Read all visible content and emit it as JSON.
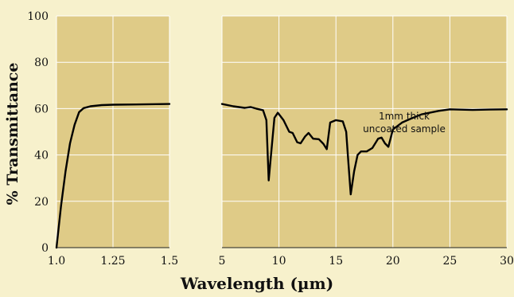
{
  "chart_data": {
    "type": "line",
    "title": "",
    "xlabel": "Wavelength (µm)",
    "ylabel": "% Transmittance",
    "ylim": [
      0,
      100
    ],
    "y_ticks": [
      "0",
      "20",
      "40",
      "60",
      "80",
      "100"
    ],
    "grid": true,
    "annotation": [
      "1mm thick",
      "uncoated sample"
    ],
    "panels": [
      {
        "id": "left",
        "xlim": [
          1.0,
          1.5
        ],
        "x_ticks": [
          "1.0",
          "1.25",
          "1.5"
        ],
        "points": [
          [
            1.0,
            0
          ],
          [
            1.02,
            18
          ],
          [
            1.04,
            33
          ],
          [
            1.06,
            45
          ],
          [
            1.08,
            53
          ],
          [
            1.1,
            58.5
          ],
          [
            1.12,
            60.2
          ],
          [
            1.15,
            61
          ],
          [
            1.2,
            61.5
          ],
          [
            1.25,
            61.7
          ],
          [
            1.35,
            61.8
          ],
          [
            1.5,
            62
          ]
        ]
      },
      {
        "id": "right",
        "xlim": [
          5,
          30
        ],
        "x_ticks": [
          "5",
          "10",
          "15",
          "20",
          "25",
          "30"
        ],
        "points": [
          [
            5,
            62
          ],
          [
            6,
            61
          ],
          [
            7,
            60.3
          ],
          [
            7.5,
            60.7
          ],
          [
            8,
            60
          ],
          [
            8.6,
            59.3
          ],
          [
            8.9,
            55
          ],
          [
            9.1,
            29
          ],
          [
            9.3,
            40
          ],
          [
            9.6,
            56
          ],
          [
            9.9,
            58.2
          ],
          [
            10.4,
            55
          ],
          [
            10.9,
            50
          ],
          [
            11.2,
            49.5
          ],
          [
            11.6,
            45.5
          ],
          [
            11.9,
            45
          ],
          [
            12.3,
            48
          ],
          [
            12.6,
            49.5
          ],
          [
            13.0,
            47
          ],
          [
            13.5,
            46.8
          ],
          [
            13.9,
            44.8
          ],
          [
            14.2,
            42.5
          ],
          [
            14.5,
            54
          ],
          [
            15.0,
            55
          ],
          [
            15.6,
            54.5
          ],
          [
            15.9,
            50
          ],
          [
            16.1,
            36
          ],
          [
            16.3,
            23
          ],
          [
            16.6,
            33
          ],
          [
            16.9,
            40
          ],
          [
            17.2,
            41.5
          ],
          [
            17.7,
            41.5
          ],
          [
            18.2,
            43
          ],
          [
            18.7,
            47
          ],
          [
            19.0,
            47.5
          ],
          [
            19.3,
            45
          ],
          [
            19.6,
            43.5
          ],
          [
            20.0,
            51
          ],
          [
            20.8,
            54
          ],
          [
            21.5,
            55.5
          ],
          [
            22.5,
            57.5
          ],
          [
            24.0,
            59
          ],
          [
            25.0,
            59.7
          ],
          [
            27.0,
            59.4
          ],
          [
            28.5,
            59.6
          ],
          [
            30.0,
            59.7
          ]
        ]
      }
    ]
  }
}
